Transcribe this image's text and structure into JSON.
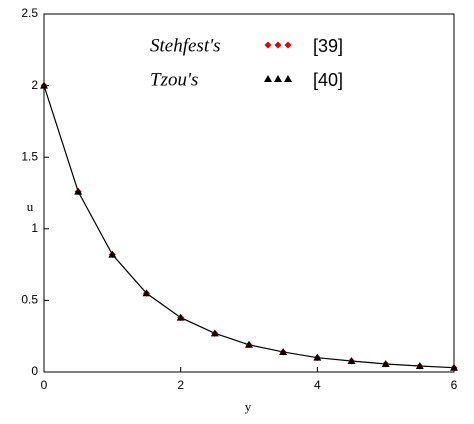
{
  "chart_data": {
    "type": "line",
    "x_label": "y",
    "y_label": "u",
    "x": [
      0,
      0.5,
      1,
      1.5,
      2,
      2.5,
      3,
      3.5,
      4,
      4.5,
      5,
      5.5,
      6
    ],
    "xlim": [
      0,
      6
    ],
    "xticks": [
      0,
      2,
      4,
      6
    ],
    "ylim": [
      0,
      2.5
    ],
    "yticks": [
      0,
      0.5,
      1,
      1.5,
      2,
      2.5
    ],
    "series": [
      {
        "color": "#000000",
        "style": "line",
        "values": [
          2.0,
          1.26,
          0.82,
          0.55,
          0.38,
          0.27,
          0.19,
          0.14,
          0.1,
          0.077,
          0.056,
          0.042,
          0.03
        ]
      },
      {
        "name": "Stehfest's",
        "label": "[39]",
        "style": "diamond",
        "color": "#e00000",
        "values": [
          2.0,
          1.26,
          0.82,
          0.55,
          0.38,
          0.27,
          0.19,
          0.14,
          0.1,
          0.077,
          0.056,
          0.042,
          0.03
        ]
      },
      {
        "name": "Tzou's",
        "label": "[40]",
        "style": "triangle",
        "color": "#000000",
        "values": [
          2.0,
          1.26,
          0.82,
          0.55,
          0.38,
          0.27,
          0.19,
          0.14,
          0.1,
          0.077,
          0.056,
          0.042,
          0.03
        ]
      }
    ]
  }
}
